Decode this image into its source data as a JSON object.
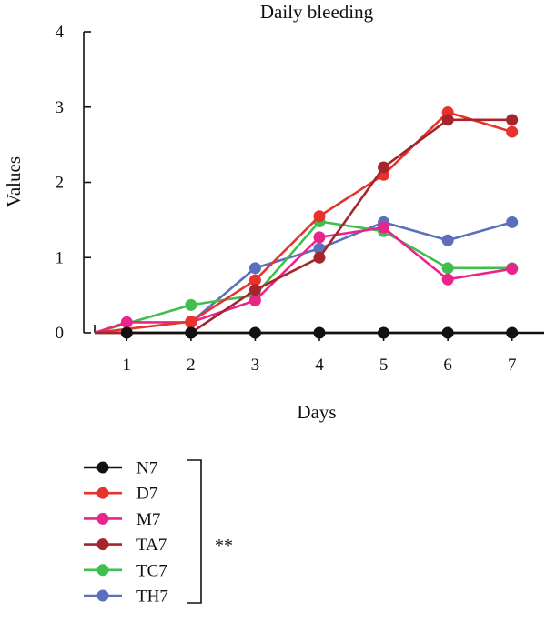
{
  "chart_data": {
    "type": "line",
    "title": "Daily bleeding",
    "xlabel": "Days",
    "ylabel": "Values",
    "x": [
      1,
      2,
      3,
      4,
      5,
      6,
      7
    ],
    "xlim": [
      0.5,
      7.5
    ],
    "ylim": [
      0,
      4
    ],
    "yticks": [
      0,
      1,
      2,
      3,
      4
    ],
    "grid": false,
    "legend_position": "bottom-left",
    "significance_label": "**",
    "series": [
      {
        "name": "N7",
        "color": "#111111",
        "x": [
          1,
          2,
          3,
          4,
          5,
          6,
          7
        ],
        "values": [
          0,
          0,
          0,
          0,
          0,
          0,
          0
        ]
      },
      {
        "name": "D7",
        "color": "#e8322e",
        "x": [
          0.5,
          2,
          3,
          4,
          5,
          6,
          7
        ],
        "values": [
          0,
          0.15,
          0.7,
          1.55,
          2.1,
          2.93,
          2.67
        ]
      },
      {
        "name": "M7",
        "color": "#e8258a",
        "x": [
          0.5,
          1,
          2,
          3,
          4,
          5,
          6,
          7
        ],
        "values": [
          0,
          0.14,
          0.14,
          0.43,
          1.27,
          1.4,
          0.71,
          0.85
        ]
      },
      {
        "name": "TA7",
        "color": "#a4262c",
        "x": [
          0.5,
          2,
          3,
          4,
          5,
          6,
          7
        ],
        "values": [
          0,
          0,
          0.57,
          1.0,
          2.2,
          2.83,
          2.83
        ]
      },
      {
        "name": "TC7",
        "color": "#3fbf4f",
        "x": [
          0.5,
          2,
          3,
          4,
          5,
          6,
          7
        ],
        "values": [
          0,
          0.37,
          0.5,
          1.48,
          1.35,
          0.86,
          0.86
        ]
      },
      {
        "name": "TH7",
        "color": "#5b6fbf",
        "x": [
          2,
          3,
          4,
          5,
          6,
          7
        ],
        "values": [
          0.14,
          0.86,
          1.12,
          1.47,
          1.23,
          1.47
        ]
      }
    ]
  }
}
